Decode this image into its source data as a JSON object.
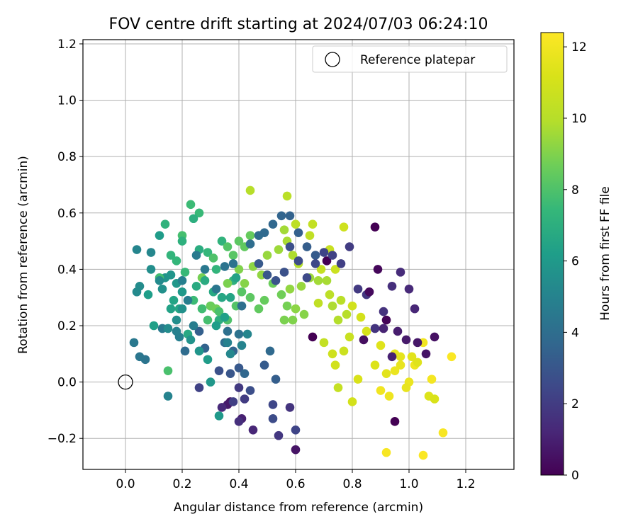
{
  "chart_data": {
    "type": "scatter",
    "title": "FOV centre drift starting at 2024/07/03 06:24:10",
    "xlabel": "Angular distance from reference (arcmin)",
    "ylabel": "Rotation from reference (arcmin)",
    "xlim": [
      -0.15,
      1.37
    ],
    "ylim": [
      -0.31,
      1.215
    ],
    "xticks": [
      0.0,
      0.2,
      0.4,
      0.6,
      0.8,
      1.0,
      1.2
    ],
    "xtick_labels": [
      "0.0",
      "0.2",
      "0.4",
      "0.6",
      "0.8",
      "1.0",
      "1.2"
    ],
    "yticks": [
      -0.2,
      0.0,
      0.2,
      0.4,
      0.6,
      0.8,
      1.0,
      1.2
    ],
    "ytick_labels": [
      "−0.2",
      "0.0",
      "0.2",
      "0.4",
      "0.6",
      "0.8",
      "1.0",
      "1.2"
    ],
    "grid": true,
    "legend": {
      "position": "top-right",
      "entries": [
        {
          "label": "Reference platepar",
          "marker": "open-circle"
        }
      ]
    },
    "reference_point": {
      "x": 0.0,
      "y": 0.0
    },
    "colorbar": {
      "label": "Hours from first FF file",
      "range": [
        0,
        12.4
      ],
      "ticks": [
        0,
        2,
        4,
        6,
        8,
        10,
        12
      ],
      "tick_labels": [
        "0",
        "2",
        "4",
        "6",
        "8",
        "10",
        "12"
      ],
      "colormap": "viridis"
    },
    "points": [
      [
        0.88,
        0.55,
        0.0
      ],
      [
        0.71,
        0.43,
        0.0
      ],
      [
        0.66,
        0.16,
        0.0
      ],
      [
        0.37,
        -0.07,
        0.5
      ],
      [
        0.6,
        -0.24,
        0.6
      ],
      [
        0.36,
        -0.08,
        0.8
      ],
      [
        0.41,
        -0.13,
        1.0
      ],
      [
        0.45,
        -0.17,
        1.2
      ],
      [
        0.34,
        -0.09,
        1.3
      ],
      [
        0.4,
        -0.14,
        1.5
      ],
      [
        0.58,
        -0.09,
        1.7
      ],
      [
        0.54,
        -0.19,
        1.8
      ],
      [
        0.4,
        -0.02,
        1.9
      ],
      [
        0.42,
        -0.06,
        2.0
      ],
      [
        0.38,
        -0.07,
        2.1
      ],
      [
        0.26,
        -0.02,
        2.2
      ],
      [
        0.6,
        -0.17,
        2.3
      ],
      [
        0.52,
        -0.08,
        2.4
      ],
      [
        0.52,
        -0.13,
        2.6
      ],
      [
        0.44,
        -0.03,
        2.7
      ],
      [
        0.33,
        0.04,
        2.8
      ],
      [
        0.37,
        0.03,
        3.0
      ],
      [
        0.4,
        0.05,
        3.1
      ],
      [
        0.49,
        0.06,
        3.2
      ],
      [
        0.53,
        0.01,
        3.3
      ],
      [
        0.26,
        0.18,
        3.4
      ],
      [
        0.28,
        0.12,
        3.5
      ],
      [
        0.38,
        0.11,
        3.6
      ],
      [
        0.42,
        0.03,
        3.7
      ],
      [
        0.51,
        0.11,
        3.8
      ],
      [
        0.21,
        0.11,
        3.9
      ],
      [
        0.35,
        0.14,
        4.0
      ],
      [
        0.36,
        0.18,
        4.1
      ],
      [
        0.4,
        0.17,
        4.2
      ],
      [
        0.07,
        0.08,
        4.3
      ],
      [
        0.05,
        0.09,
        4.4
      ],
      [
        0.03,
        0.14,
        4.5
      ],
      [
        0.13,
        0.19,
        4.6
      ],
      [
        0.24,
        0.2,
        4.7
      ],
      [
        0.19,
        0.16,
        4.8
      ],
      [
        0.36,
        0.14,
        4.9
      ],
      [
        0.41,
        0.13,
        5.0
      ],
      [
        0.43,
        0.17,
        5.1
      ],
      [
        0.37,
        0.1,
        5.2
      ],
      [
        0.04,
        0.32,
        5.3
      ],
      [
        0.05,
        0.34,
        5.4
      ],
      [
        0.09,
        0.4,
        5.5
      ],
      [
        0.13,
        0.33,
        5.6
      ],
      [
        0.14,
        0.37,
        5.7
      ],
      [
        0.16,
        0.38,
        5.8
      ],
      [
        0.18,
        0.35,
        5.9
      ],
      [
        0.2,
        0.32,
        6.0
      ],
      [
        0.12,
        0.52,
        6.1
      ],
      [
        0.08,
        0.31,
        6.2
      ],
      [
        0.1,
        0.2,
        6.3
      ],
      [
        0.16,
        0.26,
        6.4
      ],
      [
        0.17,
        0.29,
        6.5
      ],
      [
        0.19,
        0.26,
        6.6
      ],
      [
        0.22,
        0.17,
        6.7
      ],
      [
        0.25,
        0.34,
        6.8
      ],
      [
        0.3,
        0.27,
        6.9
      ],
      [
        0.33,
        0.22,
        7.0
      ],
      [
        0.38,
        0.36,
        7.1
      ],
      [
        0.34,
        0.5,
        7.2
      ],
      [
        0.32,
        0.4,
        7.3
      ],
      [
        0.29,
        0.46,
        7.4
      ],
      [
        0.26,
        0.6,
        7.5
      ],
      [
        0.23,
        0.63,
        7.6
      ],
      [
        0.12,
        0.37,
        7.7
      ],
      [
        0.2,
        0.52,
        7.8
      ],
      [
        0.15,
        0.04,
        7.9
      ],
      [
        0.31,
        0.44,
        8.0
      ],
      [
        0.36,
        0.48,
        8.1
      ],
      [
        0.38,
        0.45,
        8.2
      ],
      [
        0.4,
        0.5,
        8.3
      ],
      [
        0.42,
        0.48,
        8.4
      ],
      [
        0.44,
        0.52,
        8.5
      ],
      [
        0.3,
        0.27,
        8.6
      ],
      [
        0.32,
        0.26,
        8.7
      ],
      [
        0.27,
        0.37,
        8.8
      ],
      [
        0.36,
        0.35,
        8.9
      ],
      [
        0.4,
        0.4,
        9.0
      ],
      [
        0.42,
        0.35,
        9.1
      ],
      [
        0.45,
        0.41,
        9.2
      ],
      [
        0.48,
        0.38,
        9.3
      ],
      [
        0.5,
        0.45,
        9.4
      ],
      [
        0.54,
        0.47,
        9.5
      ],
      [
        0.56,
        0.54,
        9.6
      ],
      [
        0.57,
        0.5,
        9.7
      ],
      [
        0.59,
        0.45,
        9.8
      ],
      [
        0.61,
        0.42,
        9.9
      ],
      [
        0.44,
        0.68,
        10.0
      ],
      [
        0.57,
        0.66,
        10.1
      ],
      [
        0.6,
        0.56,
        10.2
      ],
      [
        0.65,
        0.52,
        10.3
      ],
      [
        0.66,
        0.56,
        10.4
      ],
      [
        0.69,
        0.4,
        10.5
      ],
      [
        0.72,
        0.47,
        10.6
      ],
      [
        0.74,
        0.4,
        10.7
      ],
      [
        0.77,
        0.55,
        10.8
      ],
      [
        0.8,
        0.27,
        10.9
      ],
      [
        0.83,
        0.23,
        11.0
      ],
      [
        0.85,
        0.18,
        11.1
      ],
      [
        0.82,
        0.01,
        11.2
      ],
      [
        0.88,
        0.06,
        11.3
      ],
      [
        0.9,
        0.13,
        11.4
      ],
      [
        0.92,
        0.03,
        11.5
      ],
      [
        0.95,
        0.1,
        11.6
      ],
      [
        0.97,
        0.06,
        11.7
      ],
      [
        1.0,
        0.0,
        11.8
      ],
      [
        1.02,
        0.06,
        11.9
      ],
      [
        1.05,
        0.14,
        12.0
      ],
      [
        1.08,
        0.01,
        12.1
      ],
      [
        1.12,
        -0.18,
        12.2
      ],
      [
        1.15,
        0.09,
        12.3
      ],
      [
        1.05,
        -0.26,
        12.3
      ],
      [
        0.92,
        -0.25,
        12.2
      ],
      [
        0.9,
        -0.03,
        12.0
      ],
      [
        0.93,
        -0.05,
        11.9
      ],
      [
        0.95,
        0.04,
        11.8
      ],
      [
        0.97,
        0.09,
        11.6
      ],
      [
        0.99,
        -0.02,
        11.7
      ],
      [
        1.01,
        0.09,
        11.5
      ],
      [
        1.03,
        0.07,
        11.4
      ],
      [
        1.07,
        -0.05,
        11.3
      ],
      [
        1.09,
        -0.06,
        11.2
      ],
      [
        0.8,
        -0.07,
        11.0
      ],
      [
        0.74,
        0.06,
        10.9
      ],
      [
        0.73,
        0.1,
        10.8
      ],
      [
        0.77,
        0.11,
        10.7
      ],
      [
        0.79,
        0.16,
        10.6
      ],
      [
        0.75,
        -0.02,
        10.5
      ],
      [
        0.7,
        0.14,
        10.4
      ],
      [
        0.68,
        0.28,
        10.3
      ],
      [
        0.72,
        0.31,
        10.2
      ],
      [
        0.76,
        0.29,
        10.1
      ],
      [
        0.78,
        0.24,
        10.0
      ],
      [
        0.75,
        0.22,
        9.9
      ],
      [
        0.73,
        0.27,
        9.8
      ],
      [
        0.71,
        0.36,
        9.7
      ],
      [
        0.68,
        0.36,
        9.6
      ],
      [
        0.65,
        0.37,
        9.5
      ],
      [
        0.62,
        0.34,
        9.4
      ],
      [
        0.58,
        0.33,
        9.3
      ],
      [
        0.6,
        0.26,
        9.2
      ],
      [
        0.63,
        0.24,
        9.1
      ],
      [
        0.59,
        0.22,
        9.0
      ],
      [
        0.56,
        0.22,
        8.9
      ],
      [
        0.57,
        0.27,
        8.8
      ],
      [
        0.55,
        0.31,
        8.7
      ],
      [
        0.52,
        0.35,
        8.6
      ],
      [
        0.49,
        0.29,
        8.5
      ],
      [
        0.47,
        0.26,
        8.4
      ],
      [
        0.44,
        0.3,
        8.3
      ],
      [
        0.41,
        0.32,
        8.2
      ],
      [
        0.39,
        0.27,
        8.1
      ],
      [
        0.36,
        0.22,
        8.0
      ],
      [
        0.33,
        0.25,
        7.9
      ],
      [
        0.29,
        0.22,
        7.8
      ],
      [
        0.27,
        0.26,
        7.7
      ],
      [
        0.24,
        0.29,
        7.6
      ],
      [
        0.21,
        0.39,
        7.5
      ],
      [
        0.18,
        0.43,
        7.4
      ],
      [
        0.16,
        0.45,
        7.3
      ],
      [
        0.14,
        0.56,
        7.2
      ],
      [
        0.2,
        0.5,
        7.1
      ],
      [
        0.24,
        0.58,
        7.0
      ],
      [
        0.26,
        0.47,
        6.9
      ],
      [
        0.28,
        0.36,
        6.8
      ],
      [
        0.31,
        0.32,
        6.7
      ],
      [
        0.34,
        0.3,
        6.6
      ],
      [
        0.37,
        0.3,
        6.5
      ],
      [
        0.39,
        0.37,
        6.4
      ],
      [
        0.35,
        0.23,
        6.3
      ],
      [
        0.32,
        0.2,
        6.2
      ],
      [
        0.29,
        0.08,
        6.1
      ],
      [
        0.33,
        -0.12,
        6.0
      ],
      [
        0.3,
        0.0,
        5.9
      ],
      [
        0.26,
        0.11,
        5.8
      ],
      [
        0.23,
        0.15,
        5.7
      ],
      [
        0.2,
        0.26,
        5.6
      ],
      [
        0.18,
        0.22,
        5.5
      ],
      [
        0.15,
        0.19,
        5.4
      ],
      [
        0.12,
        0.36,
        5.3
      ],
      [
        0.09,
        0.46,
        5.2
      ],
      [
        0.04,
        0.47,
        5.1
      ],
      [
        0.15,
        -0.05,
        5.0
      ],
      [
        0.18,
        0.18,
        4.9
      ],
      [
        0.2,
        0.36,
        4.8
      ],
      [
        0.22,
        0.29,
        4.7
      ],
      [
        0.25,
        0.45,
        4.6
      ],
      [
        0.28,
        0.4,
        4.5
      ],
      [
        0.32,
        0.33,
        4.4
      ],
      [
        0.35,
        0.41,
        4.3
      ],
      [
        0.38,
        0.42,
        4.2
      ],
      [
        0.41,
        0.27,
        4.1
      ],
      [
        0.44,
        0.49,
        4.0
      ],
      [
        0.47,
        0.52,
        3.9
      ],
      [
        0.49,
        0.53,
        3.8
      ],
      [
        0.52,
        0.56,
        3.7
      ],
      [
        0.55,
        0.59,
        3.6
      ],
      [
        0.58,
        0.59,
        3.5
      ],
      [
        0.61,
        0.53,
        3.4
      ],
      [
        0.64,
        0.48,
        3.3
      ],
      [
        0.67,
        0.45,
        3.2
      ],
      [
        0.47,
        0.42,
        3.1
      ],
      [
        0.5,
        0.38,
        3.0
      ],
      [
        0.53,
        0.36,
        2.9
      ],
      [
        0.56,
        0.39,
        2.8
      ],
      [
        0.58,
        0.48,
        2.7
      ],
      [
        0.61,
        0.43,
        2.6
      ],
      [
        0.64,
        0.37,
        2.5
      ],
      [
        0.67,
        0.42,
        2.4
      ],
      [
        0.7,
        0.46,
        2.3
      ],
      [
        0.73,
        0.45,
        2.2
      ],
      [
        0.76,
        0.42,
        2.1
      ],
      [
        0.79,
        0.48,
        2.0
      ],
      [
        0.82,
        0.33,
        1.9
      ],
      [
        0.85,
        0.31,
        1.8
      ],
      [
        0.88,
        0.19,
        1.7
      ],
      [
        0.91,
        0.25,
        1.6
      ],
      [
        0.94,
        0.34,
        1.5
      ],
      [
        0.97,
        0.39,
        1.4
      ],
      [
        1.0,
        0.33,
        1.3
      ],
      [
        1.02,
        0.26,
        1.2
      ],
      [
        0.91,
        0.19,
        1.1
      ],
      [
        0.94,
        0.09,
        1.0
      ],
      [
        0.96,
        0.18,
        0.9
      ],
      [
        0.99,
        0.15,
        0.8
      ],
      [
        1.03,
        0.14,
        0.7
      ],
      [
        1.06,
        0.1,
        0.6
      ],
      [
        1.09,
        0.16,
        0.5
      ],
      [
        0.84,
        0.15,
        0.4
      ],
      [
        0.86,
        0.32,
        0.3
      ],
      [
        0.89,
        0.4,
        0.2
      ],
      [
        0.92,
        0.22,
        0.1
      ],
      [
        0.95,
        -0.14,
        0.0
      ]
    ]
  }
}
